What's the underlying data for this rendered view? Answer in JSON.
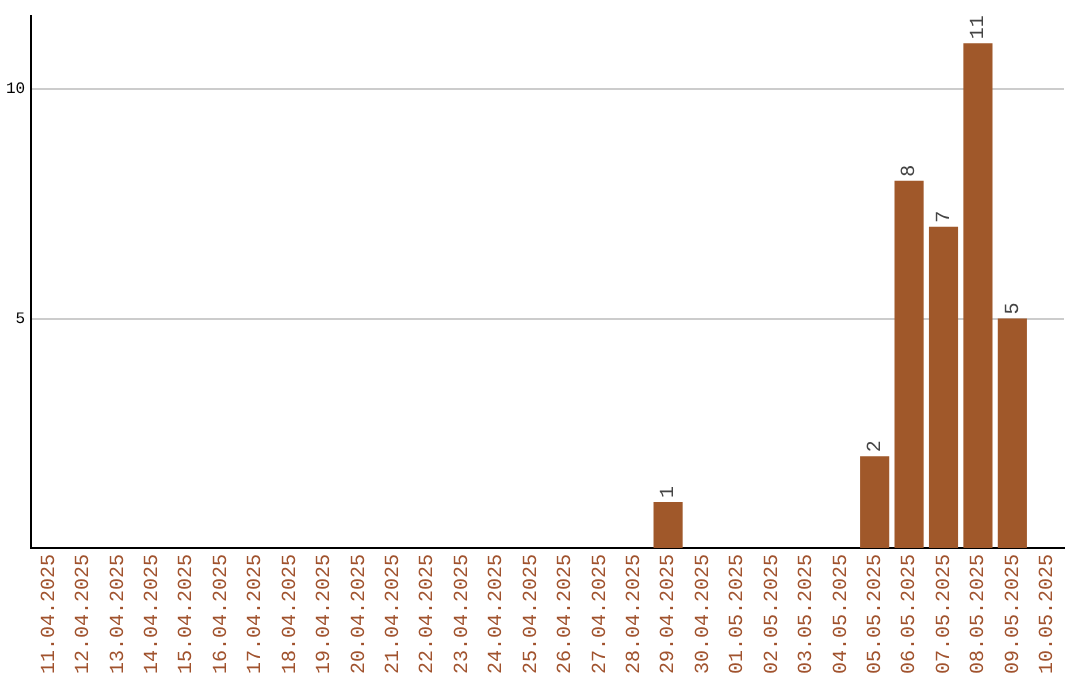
{
  "chart_data": {
    "type": "bar",
    "categories": [
      "11.04.2025",
      "12.04.2025",
      "13.04.2025",
      "14.04.2025",
      "15.04.2025",
      "16.04.2025",
      "17.04.2025",
      "18.04.2025",
      "19.04.2025",
      "20.04.2025",
      "21.04.2025",
      "22.04.2025",
      "23.04.2025",
      "24.04.2025",
      "25.04.2025",
      "26.04.2025",
      "27.04.2025",
      "28.04.2025",
      "29.04.2025",
      "30.04.2025",
      "01.05.2025",
      "02.05.2025",
      "03.05.2025",
      "04.05.2025",
      "05.05.2025",
      "06.05.2025",
      "07.05.2025",
      "08.05.2025",
      "09.05.2025",
      "10.05.2025"
    ],
    "values": [
      0,
      0,
      0,
      0,
      0,
      0,
      0,
      0,
      0,
      0,
      0,
      0,
      0,
      0,
      0,
      0,
      0,
      0,
      1,
      0,
      0,
      0,
      0,
      0,
      2,
      8,
      7,
      11,
      5,
      0
    ],
    "value_labels": [
      null,
      null,
      null,
      null,
      null,
      null,
      null,
      null,
      null,
      null,
      null,
      null,
      null,
      null,
      null,
      null,
      null,
      null,
      "1",
      null,
      null,
      null,
      null,
      null,
      "2",
      "8",
      "7",
      "11",
      "5",
      null
    ],
    "color": "#a0582a",
    "ylim": [
      0,
      11.6
    ],
    "yticks": [
      5,
      10
    ],
    "grid": "y",
    "legend": false
  }
}
